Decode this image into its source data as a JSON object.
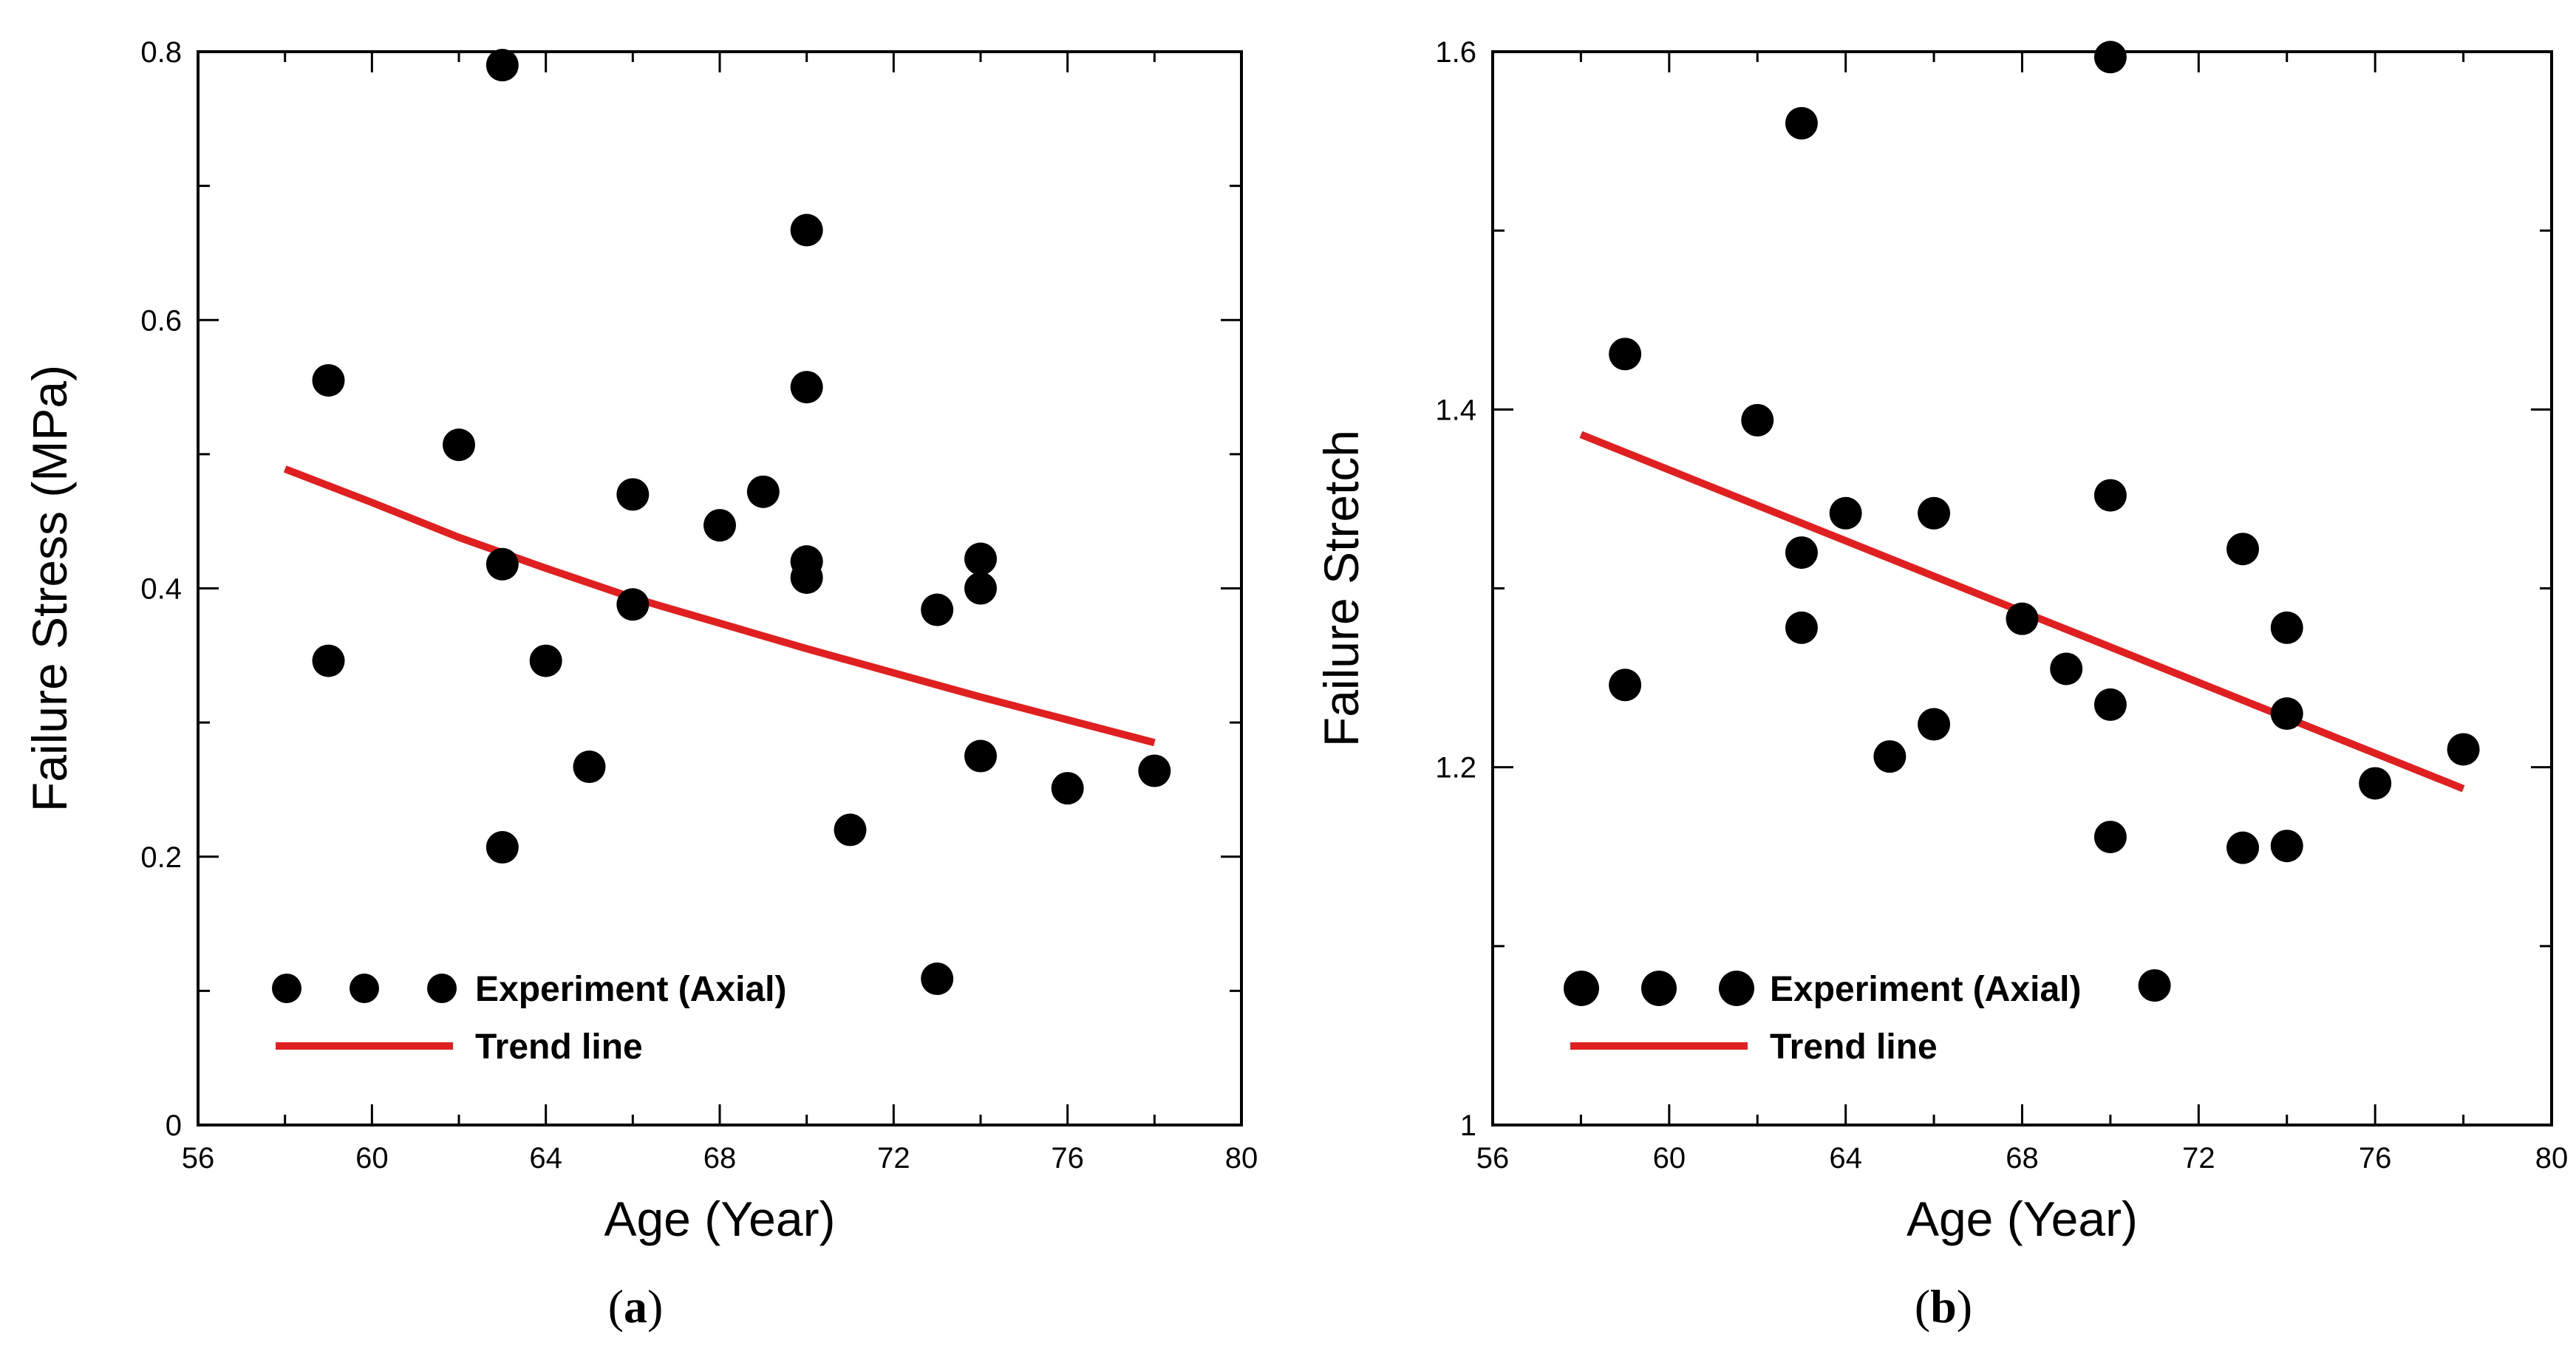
{
  "colors": {
    "points": "#000000",
    "trend": "#e02020",
    "axes": "#000000"
  },
  "chart_data": [
    {
      "type": "scatter",
      "caption_label": "a",
      "xlabel": "Age (Year)",
      "ylabel": "Failure Stress (MPa)",
      "xlim": [
        56,
        80
      ],
      "ylim": [
        0,
        0.8
      ],
      "xticks": [
        "56",
        "60",
        "64",
        "68",
        "72",
        "76",
        "80"
      ],
      "yticks": [
        "0",
        "0.2",
        "0.4",
        "0.6",
        "0.8"
      ],
      "legend": {
        "experiment": "Experiment (Axial)",
        "trend": "Trend line",
        "placement": "bottom-left"
      },
      "series": [
        {
          "name": "Experiment (Axial)",
          "x": [
            59,
            59,
            62,
            63,
            63,
            63,
            64,
            65,
            66,
            66,
            68,
            69,
            70,
            70,
            70,
            70,
            71,
            73,
            73,
            74,
            74,
            74,
            76,
            78
          ],
          "y": [
            0.555,
            0.346,
            0.507,
            0.79,
            0.418,
            0.207,
            0.346,
            0.267,
            0.47,
            0.388,
            0.447,
            0.472,
            0.667,
            0.55,
            0.42,
            0.408,
            0.22,
            0.384,
            0.109,
            0.422,
            0.4,
            0.275,
            0.251,
            0.264
          ]
        },
        {
          "name": "Trend line",
          "x": [
            58,
            60,
            62,
            64,
            66,
            68,
            70,
            72,
            74,
            76,
            78
          ],
          "y": [
            0.489,
            0.464,
            0.438,
            0.415,
            0.393,
            0.374,
            0.355,
            0.337,
            0.319,
            0.302,
            0.285
          ]
        }
      ]
    },
    {
      "type": "scatter",
      "caption_label": "b",
      "xlabel": "Age (Year)",
      "ylabel": "Failure Stretch",
      "xlim": [
        56,
        80
      ],
      "ylim": [
        1,
        1.6
      ],
      "xticks": [
        "56",
        "60",
        "64",
        "68",
        "72",
        "76",
        "80"
      ],
      "yticks": [
        "1",
        "1.2",
        "1.4",
        "1.6"
      ],
      "legend": {
        "experiment": "Experiment (Axial)",
        "trend": "Trend line",
        "placement": "bottom-left"
      },
      "series": [
        {
          "name": "Experiment (Axial)",
          "x": [
            59,
            59,
            62,
            63,
            63,
            63,
            64,
            65,
            66,
            66,
            68,
            69,
            70,
            70,
            70,
            70,
            71,
            73,
            73,
            74,
            74,
            74,
            76,
            78
          ],
          "y": [
            1.431,
            1.246,
            1.394,
            1.56,
            1.32,
            1.278,
            1.342,
            1.206,
            1.342,
            1.224,
            1.283,
            1.255,
            1.597,
            1.352,
            1.235,
            1.161,
            1.078,
            1.322,
            1.155,
            1.278,
            1.23,
            1.156,
            1.191,
            1.21
          ]
        },
        {
          "name": "Trend line",
          "x": [
            58,
            78
          ],
          "y": [
            1.386,
            1.188
          ]
        }
      ]
    }
  ]
}
